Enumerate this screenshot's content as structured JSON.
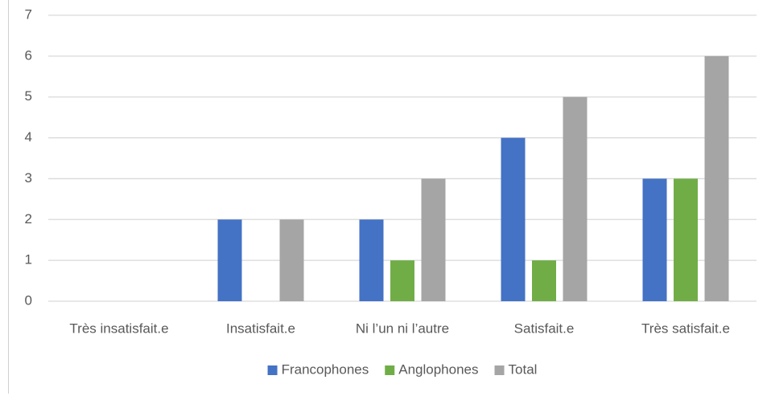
{
  "chart_data": {
    "type": "bar",
    "categories": [
      "Très insatisfait.e",
      "Insatisfait.e",
      "Ni l’un ni l’autre",
      "Satisfait.e",
      "Très satisfait.e"
    ],
    "series": [
      {
        "name": "Francophones",
        "color": "#4472c4",
        "values": [
          0,
          2,
          2,
          4,
          3
        ]
      },
      {
        "name": "Anglophones",
        "color": "#70ad47",
        "values": [
          0,
          0,
          1,
          1,
          3
        ]
      },
      {
        "name": "Total",
        "color": "#a5a5a5",
        "values": [
          0,
          2,
          3,
          5,
          6
        ]
      }
    ],
    "ylim": [
      0,
      7
    ],
    "yticks": [
      0,
      1,
      2,
      3,
      4,
      5,
      6,
      7
    ],
    "grid": true,
    "legend": "bottom"
  }
}
